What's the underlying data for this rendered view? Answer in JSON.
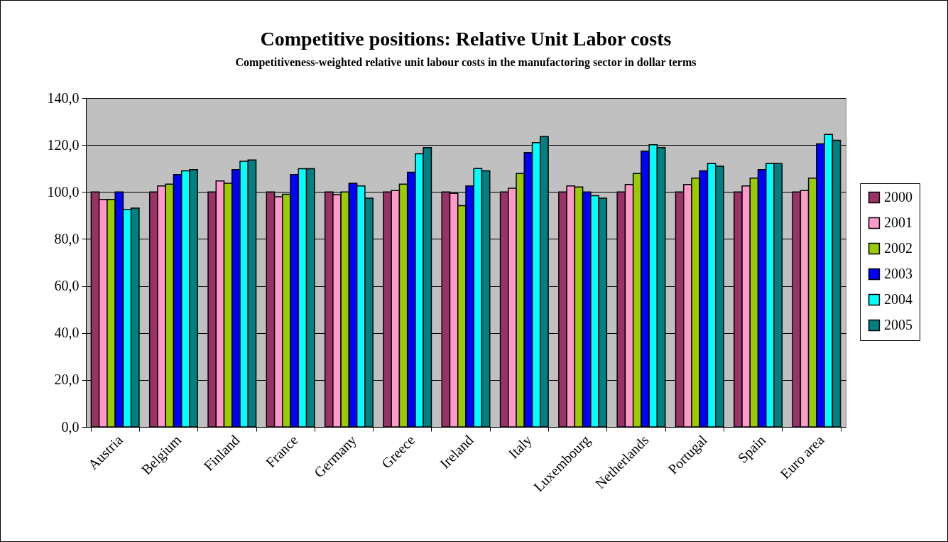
{
  "chart_data": {
    "type": "bar",
    "title": "Competitive positions: Relative Unit Labor costs",
    "subtitle": "Competitiveness-weighted relative unit labour costs in the manufactoring sector in dollar terms",
    "categories": [
      "Austria",
      "Belgium",
      "Finland",
      "France",
      "Germany",
      "Greece",
      "Ireland",
      "Italy",
      "Luxembourg",
      "Netherlands",
      "Portugal",
      "Spain",
      "Euro area"
    ],
    "series": [
      {
        "name": "2000",
        "color": "#993366",
        "values": [
          100,
          100,
          100,
          100,
          100,
          100,
          100,
          100,
          100,
          100,
          100,
          100,
          100
        ]
      },
      {
        "name": "2001",
        "color": "#ff99cc",
        "values": [
          96.8,
          102.6,
          104.7,
          98.0,
          98.9,
          100.6,
          99.4,
          101.6,
          102.6,
          103.2,
          103.2,
          102.6,
          100.6
        ]
      },
      {
        "name": "2002",
        "color": "#99cc00",
        "values": [
          96.8,
          103.3,
          103.7,
          99.0,
          100,
          103.3,
          94.2,
          107.9,
          102.1,
          107.9,
          105.9,
          105.9,
          105.9
        ]
      },
      {
        "name": "2003",
        "color": "#0000ff",
        "values": [
          100,
          107.4,
          109.5,
          107.4,
          103.7,
          108.4,
          102.6,
          116.8,
          100,
          117.4,
          109.0,
          109.5,
          120.5
        ]
      },
      {
        "name": "2004",
        "color": "#00ffff",
        "values": [
          92.6,
          109.0,
          113.1,
          109.9,
          102.6,
          116.3,
          110.0,
          121.0,
          98.4,
          120.1,
          112.1,
          112.1,
          124.5
        ]
      },
      {
        "name": "2005",
        "color": "#008080",
        "values": [
          93.1,
          109.5,
          113.6,
          109.9,
          97.4,
          118.9,
          109.0,
          123.6,
          97.4,
          118.9,
          111.0,
          112.1,
          122.0
        ]
      }
    ],
    "ylim": [
      0,
      140
    ],
    "yticks": [
      {
        "value": 0,
        "label": "0,0"
      },
      {
        "value": 20,
        "label": "20,0"
      },
      {
        "value": 40,
        "label": "40,0"
      },
      {
        "value": 60,
        "label": "60,0"
      },
      {
        "value": 80,
        "label": "80,0"
      },
      {
        "value": 100,
        "label": "100,0"
      },
      {
        "value": 120,
        "label": "120,0"
      },
      {
        "value": 140,
        "label": "140,0"
      }
    ],
    "grid": "y",
    "legend": "right"
  }
}
